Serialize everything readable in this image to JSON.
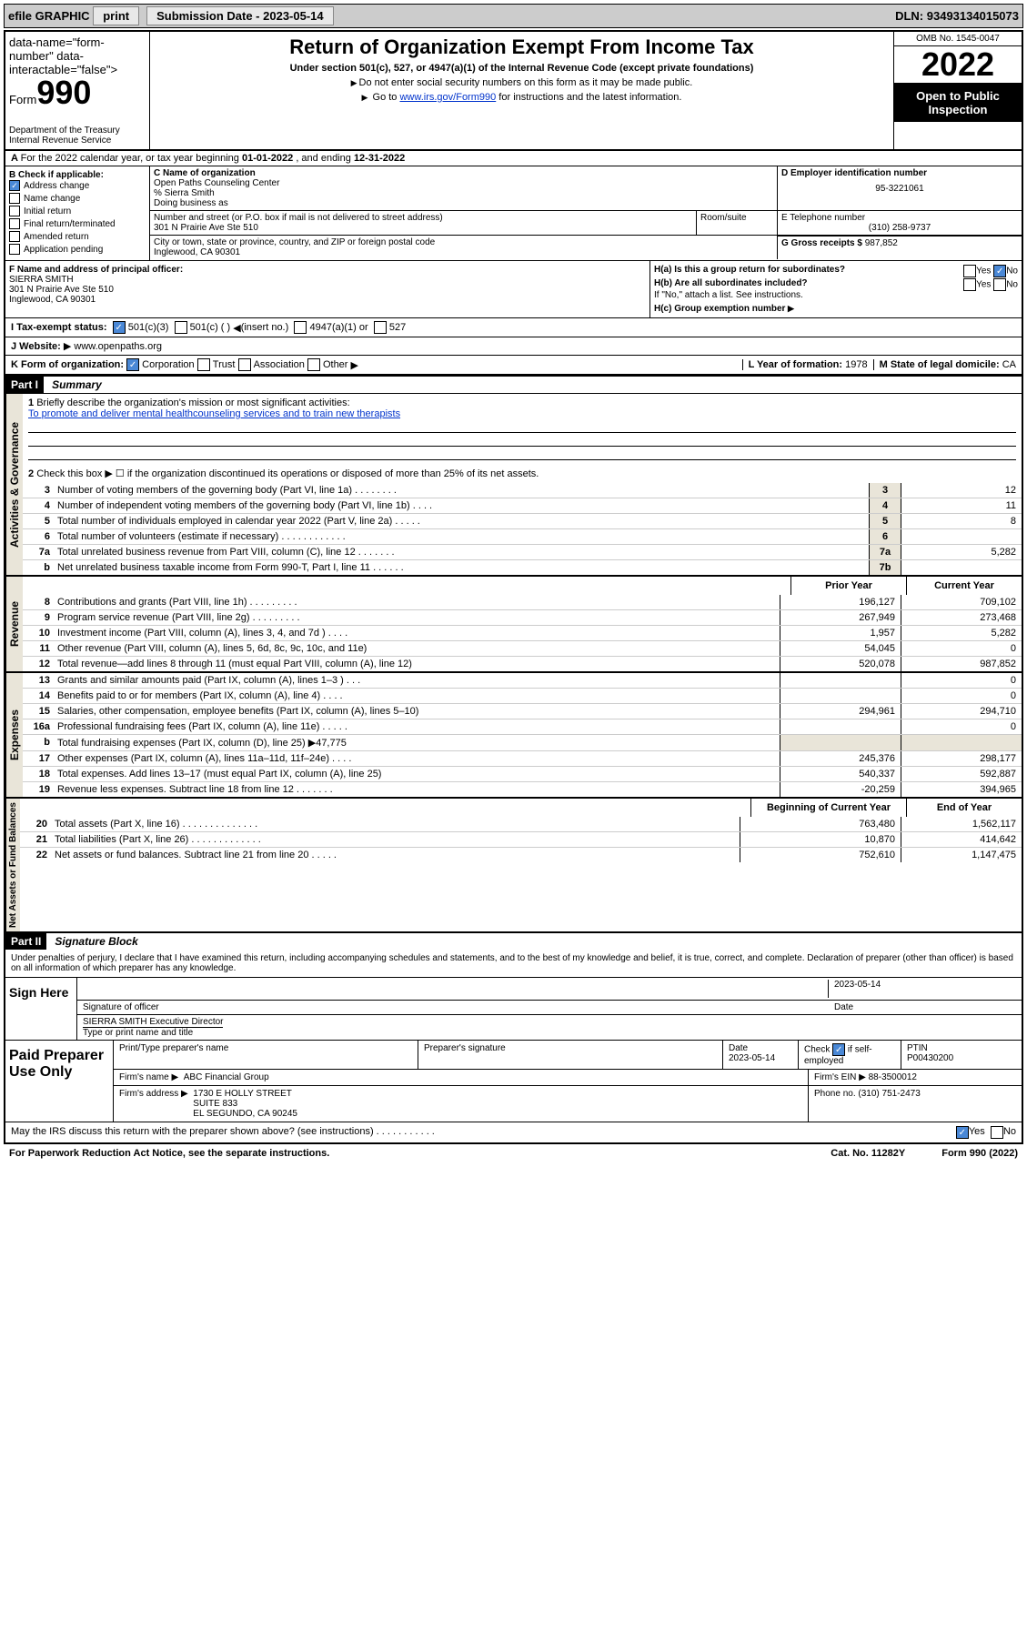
{
  "toolbar": {
    "efile": "efile GRAPHIC",
    "print": "print",
    "submission_label": "Submission Date -",
    "submission_date": "2023-05-14",
    "dln_label": "DLN:",
    "dln": "93493134015073"
  },
  "header": {
    "form_label": "Form",
    "form_num": "990",
    "title": "Return of Organization Exempt From Income Tax",
    "sub": "Under section 501(c), 527, or 4947(a)(1) of the Internal Revenue Code (except private foundations)",
    "note1": "Do not enter social security numbers on this form as it may be made public.",
    "note2_pre": "Go to ",
    "note2_link": "www.irs.gov/Form990",
    "note2_post": " for instructions and the latest information.",
    "dept": "Department of the Treasury",
    "irs": "Internal Revenue Service",
    "omb": "OMB No. 1545-0047",
    "year": "2022",
    "open": "Open to Public Inspection"
  },
  "row_a": {
    "text_pre": "For the 2022 calendar year, or tax year beginning ",
    "begin": "01-01-2022",
    "mid": " , and ending ",
    "end": "12-31-2022"
  },
  "col_b": {
    "label": "B Check if applicable:",
    "items": [
      {
        "label": "Address change",
        "checked": true
      },
      {
        "label": "Name change",
        "checked": false
      },
      {
        "label": "Initial return",
        "checked": false
      },
      {
        "label": "Final return/terminated",
        "checked": false
      },
      {
        "label": "Amended return",
        "checked": false
      },
      {
        "label": "Application pending",
        "checked": false
      }
    ]
  },
  "col_c": {
    "name_label": "C Name of organization",
    "name": "Open Paths Counseling Center",
    "care_of": "% Sierra Smith",
    "dba_label": "Doing business as",
    "addr_label": "Number and street (or P.O. box if mail is not delivered to street address)",
    "room_label": "Room/suite",
    "addr": "301 N Prairie Ave Ste 510",
    "city_label": "City or town, state or province, country, and ZIP or foreign postal code",
    "city": "Inglewood, CA  90301"
  },
  "col_d": {
    "ein_label": "D Employer identification number",
    "ein": "95-3221061",
    "phone_label": "E Telephone number",
    "phone": "(310) 258-9737",
    "gross_label": "G Gross receipts $",
    "gross": "987,852"
  },
  "section_f": {
    "f_label": "F Name and address of principal officer:",
    "f_name": "SIERRA SMITH",
    "f_addr1": "301 N Prairie Ave Ste 510",
    "f_addr2": "Inglewood, CA  90301",
    "ha": "H(a)  Is this a group return for subordinates?",
    "hb": "H(b)  Are all subordinates included?",
    "hb_note": "If \"No,\" attach a list. See instructions.",
    "hc": "H(c)  Group exemption number",
    "yes": "Yes",
    "no": "No"
  },
  "row_i": {
    "label": "I   Tax-exempt status:",
    "c3": "501(c)(3)",
    "c": "501(c) (  )",
    "insert": "(insert no.)",
    "s4947": "4947(a)(1) or",
    "s527": "527"
  },
  "row_j": {
    "label": "J   Website:",
    "url": "www.openpaths.org"
  },
  "row_k": {
    "label": "K Form of organization:",
    "corp": "Corporation",
    "trust": "Trust",
    "assoc": "Association",
    "other": "Other",
    "l_label": "L Year of formation:",
    "l_val": "1978",
    "m_label": "M State of legal domicile:",
    "m_val": "CA"
  },
  "parts": {
    "p1": "Part I",
    "p1_title": "Summary",
    "p2": "Part II",
    "p2_title": "Signature Block"
  },
  "summary": {
    "line1_label": "Briefly describe the organization's mission or most significant activities:",
    "line1_text": "To promote and deliver mental healthcounseling services and to train new therapists",
    "line2": "Check this box ▶ ☐  if the organization discontinued its operations or disposed of more than 25% of its net assets.",
    "prior_year": "Prior Year",
    "current_year": "Current Year",
    "begin_year": "Beginning of Current Year",
    "end_year": "End of Year"
  },
  "governance_lines": [
    {
      "n": "3",
      "desc": "Number of voting members of the governing body (Part VI, line 1a)   .    .    .    .    .    .    .    .",
      "box": "3",
      "val": "12"
    },
    {
      "n": "4",
      "desc": "Number of independent voting members of the governing body (Part VI, line 1b)   .    .    .    .",
      "box": "4",
      "val": "11"
    },
    {
      "n": "5",
      "desc": "Total number of individuals employed in calendar year 2022 (Part V, line 2a)    .    .    .    .    .",
      "box": "5",
      "val": "8"
    },
    {
      "n": "6",
      "desc": "Total number of volunteers (estimate if necessary)   .    .    .    .    .    .    .    .    .    .    .    .",
      "box": "6",
      "val": ""
    },
    {
      "n": "7a",
      "desc": "Total unrelated business revenue from Part VIII, column (C), line 12   .    .    .    .    .    .    .",
      "box": "7a",
      "val": "5,282"
    },
    {
      "n": "b",
      "desc": "Net unrelated business taxable income from Form 990-T, Part I, line 11   .    .    .    .    .    .",
      "box": "7b",
      "val": ""
    }
  ],
  "revenue_lines": [
    {
      "n": "8",
      "desc": "Contributions and grants (Part VIII, line 1h)   .    .    .    .    .    .    .    .    .",
      "py": "196,127",
      "cy": "709,102"
    },
    {
      "n": "9",
      "desc": "Program service revenue (Part VIII, line 2g)   .    .    .    .    .    .    .    .    .",
      "py": "267,949",
      "cy": "273,468"
    },
    {
      "n": "10",
      "desc": "Investment income (Part VIII, column (A), lines 3, 4, and 7d )   .    .    .    .",
      "py": "1,957",
      "cy": "5,282"
    },
    {
      "n": "11",
      "desc": "Other revenue (Part VIII, column (A), lines 5, 6d, 8c, 9c, 10c, and 11e)",
      "py": "54,045",
      "cy": "0"
    },
    {
      "n": "12",
      "desc": "Total revenue—add lines 8 through 11 (must equal Part VIII, column (A), line 12)",
      "py": "520,078",
      "cy": "987,852"
    }
  ],
  "expense_lines": [
    {
      "n": "13",
      "desc": "Grants and similar amounts paid (Part IX, column (A), lines 1–3 )   .    .    .",
      "py": "",
      "cy": "0"
    },
    {
      "n": "14",
      "desc": "Benefits paid to or for members (Part IX, column (A), line 4)   .    .    .    .",
      "py": "",
      "cy": "0"
    },
    {
      "n": "15",
      "desc": "Salaries, other compensation, employee benefits (Part IX, column (A), lines 5–10)",
      "py": "294,961",
      "cy": "294,710"
    },
    {
      "n": "16a",
      "desc": "Professional fundraising fees (Part IX, column (A), line 11e)   .    .    .    .    .",
      "py": "",
      "cy": "0"
    },
    {
      "n": "b",
      "desc": "Total fundraising expenses (Part IX, column (D), line 25) ▶47,775",
      "py": "—",
      "cy": "—"
    },
    {
      "n": "17",
      "desc": "Other expenses (Part IX, column (A), lines 11a–11d, 11f–24e)   .    .    .    .",
      "py": "245,376",
      "cy": "298,177"
    },
    {
      "n": "18",
      "desc": "Total expenses. Add lines 13–17 (must equal Part IX, column (A), line 25)",
      "py": "540,337",
      "cy": "592,887"
    },
    {
      "n": "19",
      "desc": "Revenue less expenses. Subtract line 18 from line 12   .    .    .    .    .    .    .",
      "py": "-20,259",
      "cy": "394,965"
    }
  ],
  "balance_lines": [
    {
      "n": "20",
      "desc": "Total assets (Part X, line 16)   .    .    .    .    .    .    .    .    .    .    .    .    .    .",
      "py": "763,480",
      "cy": "1,562,117"
    },
    {
      "n": "21",
      "desc": "Total liabilities (Part X, line 26)   .    .    .    .    .    .    .    .    .    .    .    .    .",
      "py": "10,870",
      "cy": "414,642"
    },
    {
      "n": "22",
      "desc": "Net assets or fund balances. Subtract line 21 from line 20   .    .    .    .    .",
      "py": "752,610",
      "cy": "1,147,475"
    }
  ],
  "vert": {
    "gov": "Activities & Governance",
    "rev": "Revenue",
    "exp": "Expenses",
    "bal": "Net Assets or Fund Balances"
  },
  "sig": {
    "declare": "Under penalties of perjury, I declare that I have examined this return, including accompanying schedules and statements, and to the best of my knowledge and belief, it is true, correct, and complete. Declaration of preparer (other than officer) is based on all information of which preparer has any knowledge.",
    "sign_here": "Sign Here",
    "sig_officer": "Signature of officer",
    "date": "Date",
    "sig_date": "2023-05-14",
    "name_title": "SIERRA SMITH  Executive Director",
    "type_name": "Type or print name and title"
  },
  "prep": {
    "label": "Paid Preparer Use Only",
    "h_name": "Print/Type preparer's name",
    "h_sig": "Preparer's signature",
    "h_date": "Date",
    "date": "2023-05-14",
    "check_label": "Check",
    "self": "if self-employed",
    "ptin_label": "PTIN",
    "ptin": "P00430200",
    "firm_name_label": "Firm's name   ▶",
    "firm_name": "ABC Financial Group",
    "firm_ein_label": "Firm's EIN ▶",
    "firm_ein": "88-3500012",
    "firm_addr_label": "Firm's address ▶",
    "firm_addr1": "1730 E HOLLY STREET",
    "firm_addr2": "SUITE 833",
    "firm_addr3": "EL SEGUNDO, CA  90245",
    "phone_label": "Phone no.",
    "phone": "(310) 751-2473"
  },
  "footer": {
    "discuss": "May the IRS discuss this return with the preparer shown above? (see instructions)   .    .    .    .    .    .    .    .    .    .    .",
    "yes": "Yes",
    "no": "No",
    "pra": "For Paperwork Reduction Act Notice, see the separate instructions.",
    "cat": "Cat. No. 11282Y",
    "form_ref": "Form 990 (2022)"
  }
}
